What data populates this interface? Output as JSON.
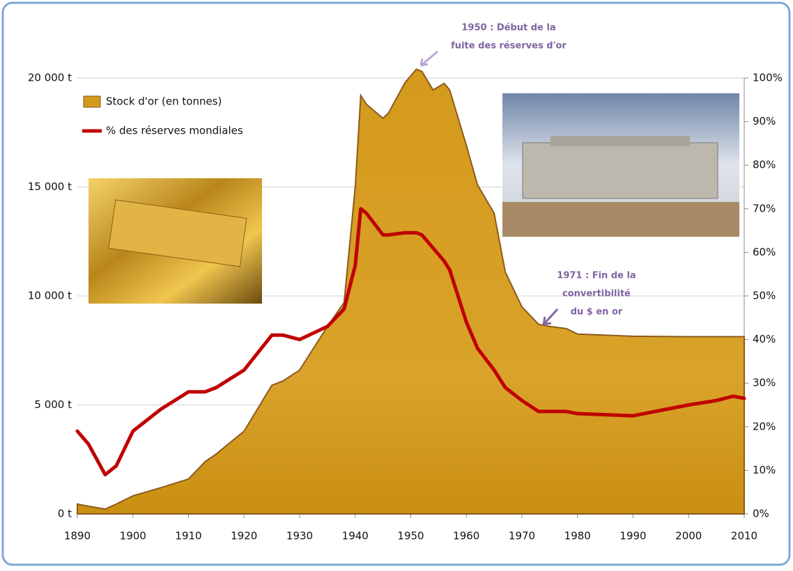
{
  "chart_data": {
    "type": "area-line",
    "x": [
      1890,
      1892,
      1895,
      1897,
      1900,
      1905,
      1910,
      1913,
      1915,
      1920,
      1925,
      1927,
      1930,
      1935,
      1938,
      1940,
      1941,
      1942,
      1945,
      1946,
      1949,
      1951,
      1952,
      1954,
      1956,
      1957,
      1958,
      1960,
      1962,
      1965,
      1967,
      1970,
      1973,
      1975,
      1978,
      1980,
      1990,
      2000,
      2005,
      2008,
      2010
    ],
    "series": [
      {
        "name": "Stock d'or (en tonnes)",
        "color": "#d49a1c",
        "values": [
          450,
          350,
          220,
          450,
          830,
          1200,
          1600,
          2400,
          2750,
          3800,
          5900,
          6100,
          6600,
          8600,
          9700,
          15000,
          19200,
          18800,
          18150,
          18400,
          19800,
          20400,
          20300,
          19450,
          19750,
          19450,
          18600,
          16900,
          15100,
          13800,
          11100,
          9500,
          8700,
          8600,
          8500,
          8250,
          8150,
          8130,
          8130,
          8130,
          8130
        ]
      },
      {
        "name": "% des réserves mondiales",
        "color": "#c00000",
        "axis": "y2",
        "values": [
          19,
          16,
          9,
          11,
          19,
          24,
          28,
          28,
          29,
          33,
          41,
          41,
          40,
          43,
          47,
          57,
          70,
          69,
          64,
          64,
          64.5,
          64.5,
          64,
          61,
          58,
          56,
          52,
          44,
          38,
          33,
          29,
          26,
          23.5,
          23.5,
          23.5,
          23,
          22.5,
          25,
          26,
          27,
          26.5
        ]
      }
    ],
    "xlim": [
      1890,
      2010
    ],
    "xticks": [
      1890,
      1900,
      1910,
      1920,
      1930,
      1940,
      1950,
      1960,
      1970,
      1980,
      1990,
      2000,
      2010
    ],
    "ylim": [
      0,
      20000
    ],
    "yticks": [
      {
        "value": 0,
        "label": "0 t"
      },
      {
        "value": 5000,
        "label": "5 000 t"
      },
      {
        "value": 10000,
        "label": "10 000 t"
      },
      {
        "value": 15000,
        "label": "15 000 t"
      },
      {
        "value": 20000,
        "label": "20 000 t"
      }
    ],
    "y2lim": [
      0,
      100
    ],
    "y2ticks": [
      {
        "value": 0,
        "label": "0%"
      },
      {
        "value": 10,
        "label": "10%"
      },
      {
        "value": 20,
        "label": "20%"
      },
      {
        "value": 30,
        "label": "30%"
      },
      {
        "value": 40,
        "label": "40%"
      },
      {
        "value": 50,
        "label": "50%"
      },
      {
        "value": 60,
        "label": "60%"
      },
      {
        "value": 70,
        "label": "70%"
      },
      {
        "value": 80,
        "label": "80%"
      },
      {
        "value": 90,
        "label": "90%"
      },
      {
        "value": 100,
        "label": "100%"
      }
    ],
    "grid": true,
    "legend": "top-left",
    "annotations": [
      {
        "lines": [
          "1950 : Début de la",
          "fuite des réserves d'or"
        ]
      },
      {
        "lines": [
          "1971 : Fin de la",
          "convertibilité",
          "du $ en or"
        ]
      }
    ]
  }
}
